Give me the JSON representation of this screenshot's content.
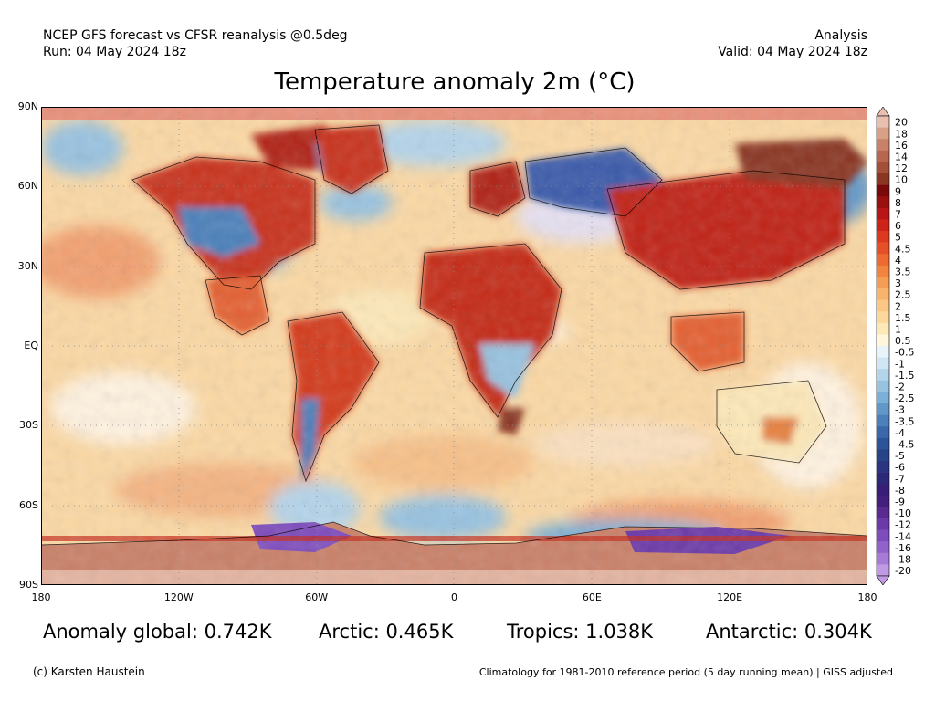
{
  "header": {
    "line1_left": "NCEP GFS forecast vs CFSR reanalysis @0.5deg",
    "line2_left": "Run: 04 May 2024 18z",
    "line1_right": "Analysis",
    "line2_right": "Valid: 04 May 2024 18z"
  },
  "title": "Temperature anomaly 2m (°C)",
  "lat_ticks": [
    "90N",
    "60N",
    "30N",
    "EQ",
    "30S",
    "60S",
    "90S"
  ],
  "lon_ticks": [
    "180",
    "120W",
    "60W",
    "0",
    "60E",
    "120E",
    "180"
  ],
  "colorbar": {
    "labels": [
      "20",
      "18",
      "16",
      "14",
      "12",
      "10",
      "9",
      "8",
      "7",
      "6",
      "5",
      "4.5",
      "4",
      "3.5",
      "3",
      "2.5",
      "2",
      "1.5",
      "1",
      "0.5",
      "-0.5",
      "-1",
      "-1.5",
      "-2",
      "-2.5",
      "-3",
      "-3.5",
      "-4",
      "-4.5",
      "-5",
      "-6",
      "-7",
      "-8",
      "-9",
      "-10",
      "-12",
      "-14",
      "-16",
      "-18",
      "-20"
    ],
    "colors": [
      "#e8c0b0",
      "#d9a088",
      "#c98068",
      "#b86650",
      "#a45038",
      "#8a3622",
      "#7a0a0a",
      "#9a1010",
      "#b81616",
      "#cc2418",
      "#dc3a20",
      "#e65028",
      "#ee6a30",
      "#f28440",
      "#f59c55",
      "#f8b46c",
      "#fac884",
      "#fcd89c",
      "#fde8b8",
      "#fff6dc",
      "#e8f4fa",
      "#d0e6f4",
      "#b4d4ea",
      "#98c2e0",
      "#7cb0d6",
      "#6298c8",
      "#4c80ba",
      "#3a68aa",
      "#2c5498",
      "#284488",
      "#2a3480",
      "#2e2878",
      "#381e78",
      "#44207e",
      "#5a2a92",
      "#6c3aa8",
      "#7e4cbc",
      "#9262cc",
      "#a87ad8",
      "#c09ae4"
    ]
  },
  "stats": {
    "global": "Anomaly global: 0.742K",
    "arctic": "Arctic: 0.465K",
    "tropics": "Tropics: 1.038K",
    "antarctic": "Antarctic: 0.304K"
  },
  "footer": {
    "left": "(c) Karsten Haustein",
    "right": "Climatology for 1981-2010 reference period (5 day running mean) | GISS adjusted"
  }
}
